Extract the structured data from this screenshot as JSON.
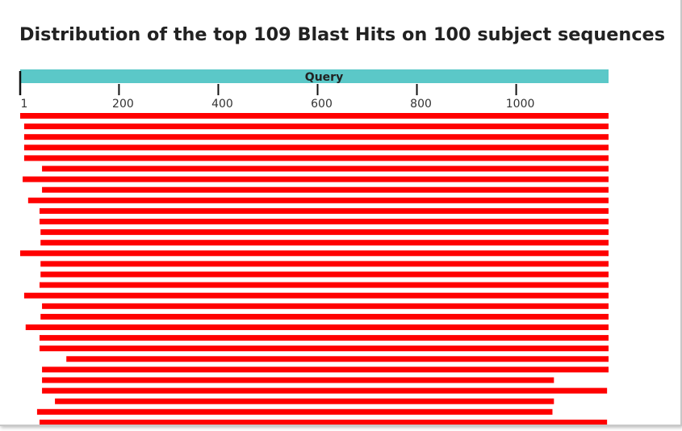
{
  "title": "Distribution of the top 109 Blast Hits on 100 subject sequences",
  "query": {
    "label": "Query"
  },
  "xlim": [
    1,
    1186
  ],
  "xticks": [
    1,
    200,
    400,
    600,
    800,
    1000
  ],
  "hits": [
    {
      "start": 1,
      "end": 1186
    },
    {
      "start": 9,
      "end": 1186
    },
    {
      "start": 9,
      "end": 1186
    },
    {
      "start": 9,
      "end": 1186
    },
    {
      "start": 9,
      "end": 1186
    },
    {
      "start": 45,
      "end": 1186
    },
    {
      "start": 6,
      "end": 1186
    },
    {
      "start": 45,
      "end": 1186
    },
    {
      "start": 17,
      "end": 1186
    },
    {
      "start": 40,
      "end": 1186
    },
    {
      "start": 40,
      "end": 1186
    },
    {
      "start": 42,
      "end": 1186
    },
    {
      "start": 42,
      "end": 1186
    },
    {
      "start": 1,
      "end": 1186
    },
    {
      "start": 42,
      "end": 1186
    },
    {
      "start": 42,
      "end": 1186
    },
    {
      "start": 40,
      "end": 1186
    },
    {
      "start": 9,
      "end": 1186
    },
    {
      "start": 45,
      "end": 1186
    },
    {
      "start": 42,
      "end": 1186
    },
    {
      "start": 12,
      "end": 1186
    },
    {
      "start": 40,
      "end": 1186
    },
    {
      "start": 40,
      "end": 1186
    },
    {
      "start": 94,
      "end": 1186
    },
    {
      "start": 45,
      "end": 1186
    },
    {
      "start": 45,
      "end": 1076
    },
    {
      "start": 45,
      "end": 1183
    },
    {
      "start": 71,
      "end": 1076
    },
    {
      "start": 35,
      "end": 1073
    },
    {
      "start": 40,
      "end": 1183
    }
  ]
}
